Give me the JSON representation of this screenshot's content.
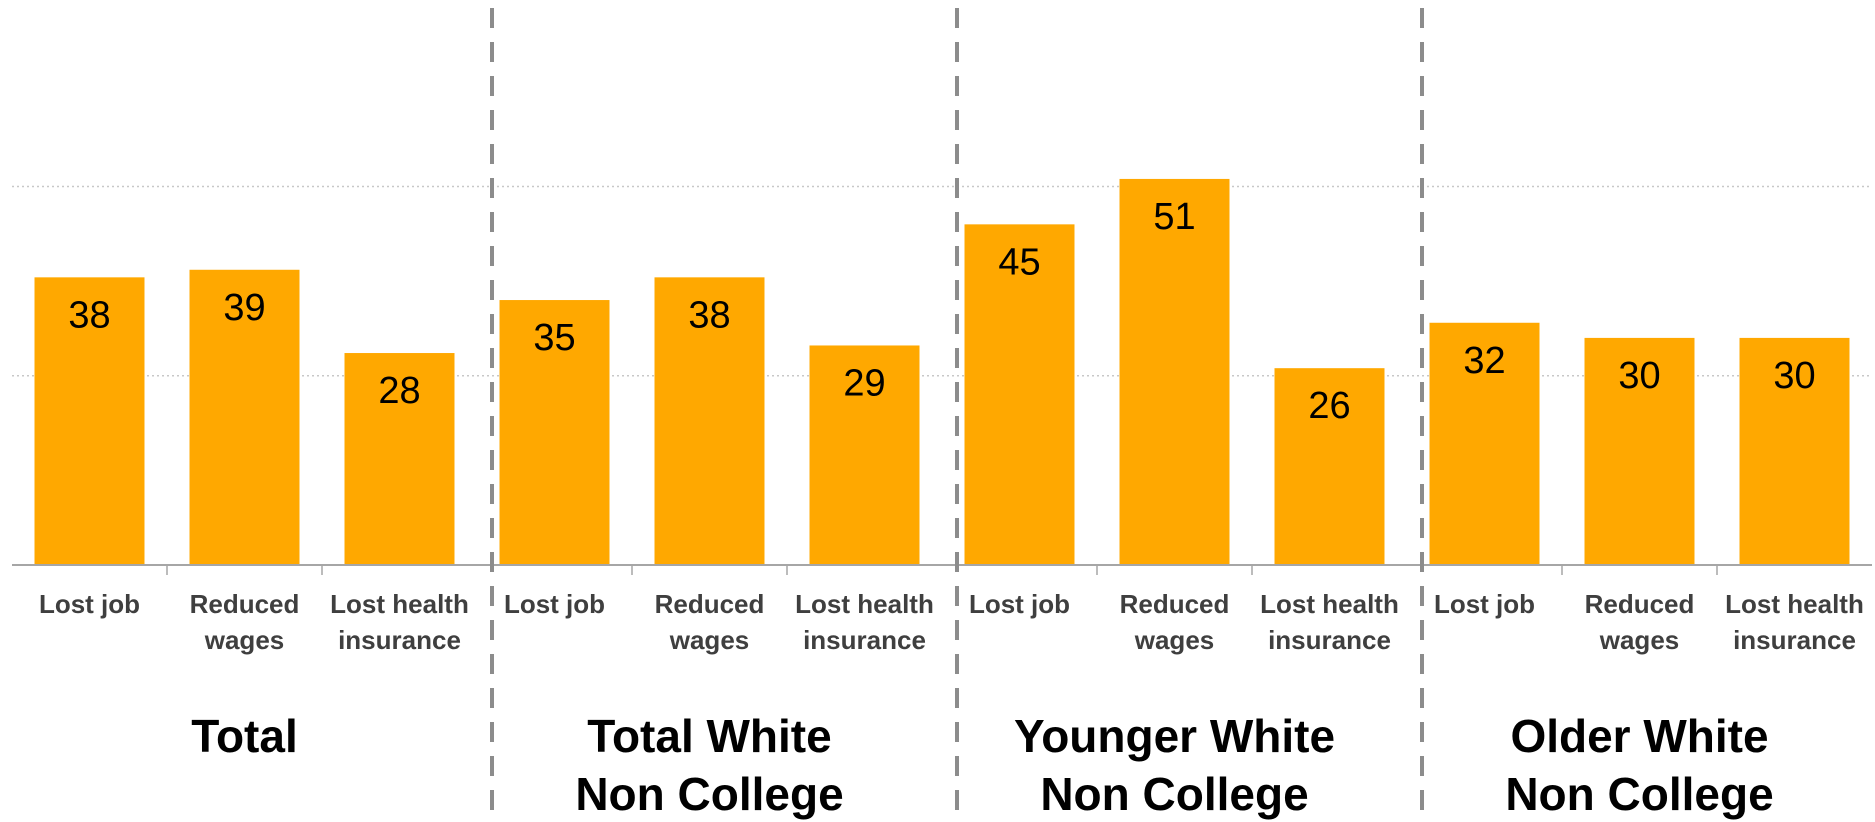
{
  "chart_data": {
    "type": "bar",
    "title": "",
    "xlabel": "",
    "ylabel": "",
    "ylim": [
      0,
      75
    ],
    "grid": true,
    "legend": "none",
    "bar_color": "#FFA800",
    "groups": [
      {
        "label": "Total",
        "categories": [
          "Lost job",
          "Reduced wages",
          "Lost health insurance"
        ],
        "values": [
          38,
          39,
          28
        ]
      },
      {
        "label": "Total White Non College",
        "categories": [
          "Lost job",
          "Reduced wages",
          "Lost health insurance"
        ],
        "values": [
          35,
          38,
          29
        ]
      },
      {
        "label": "Younger White Non College",
        "categories": [
          "Lost job",
          "Reduced wages",
          "Lost health insurance"
        ],
        "values": [
          45,
          51,
          26
        ]
      },
      {
        "label": "Older White Non College",
        "categories": [
          "Lost job",
          "Reduced wages",
          "Lost health insurance"
        ],
        "values": [
          32,
          30,
          30
        ]
      }
    ]
  }
}
